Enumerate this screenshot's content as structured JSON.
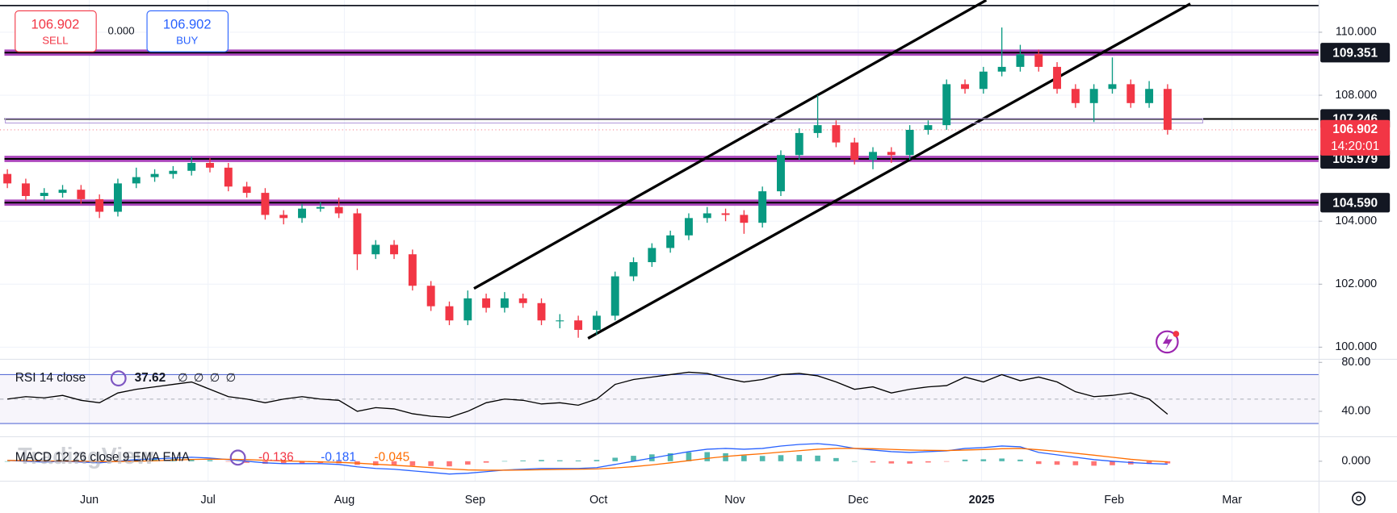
{
  "chart_data": [
    {
      "type": "candlestick",
      "up_color": "#089981",
      "down_color": "#f23645",
      "xlim": [
        -0.4,
        71.2
      ],
      "xticks": [
        {
          "value": 4.45,
          "label": "Jun"
        },
        {
          "value": 10.9,
          "label": "Jul"
        },
        {
          "value": 18.3,
          "label": "Aug"
        },
        {
          "value": 25.4,
          "label": "Sep"
        },
        {
          "value": 32.1,
          "label": "Oct"
        },
        {
          "value": 39.5,
          "label": "Nov"
        },
        {
          "value": 46.2,
          "label": "Dec"
        },
        {
          "value": 52.9,
          "label": "2025"
        },
        {
          "value": 60.1,
          "label": "Feb"
        },
        {
          "value": 66.5,
          "label": "Mar"
        }
      ],
      "ylim": [
        99.63,
        111.017
      ],
      "yticks": [
        {
          "value": 100,
          "label": "100.000"
        },
        {
          "value": 102,
          "label": "102.000"
        },
        {
          "value": 104,
          "label": "104.000"
        },
        {
          "value": 108,
          "label": "108.000"
        },
        {
          "value": 110,
          "label": "110.000"
        }
      ],
      "grid": true,
      "levels": [
        {
          "value": 109.351,
          "highlight": true
        },
        {
          "value": 107.246,
          "highlight": false
        },
        {
          "value": 105.979,
          "highlight": true
        },
        {
          "value": 104.59,
          "label": "104.590",
          "highlight": true
        }
      ],
      "countdown": "14:20:01",
      "values": [
        [
          105.5,
          105.65,
          105.05,
          105.2
        ],
        [
          105.2,
          105.35,
          104.65,
          104.8
        ],
        [
          104.8,
          105.05,
          104.65,
          104.9
        ],
        [
          104.9,
          105.15,
          104.75,
          105.0
        ],
        [
          105.0,
          105.15,
          104.55,
          104.7
        ],
        [
          104.7,
          104.85,
          104.1,
          104.3
        ],
        [
          104.3,
          105.35,
          104.15,
          105.2
        ],
        [
          105.2,
          105.7,
          105.05,
          105.4
        ],
        [
          105.4,
          105.65,
          105.25,
          105.5
        ],
        [
          105.5,
          105.75,
          105.35,
          105.6
        ],
        [
          105.6,
          106.05,
          105.45,
          105.85
        ],
        [
          105.85,
          106.0,
          105.55,
          105.7
        ],
        [
          105.7,
          105.85,
          104.95,
          105.1
        ],
        [
          105.1,
          105.25,
          104.75,
          104.9
        ],
        [
          104.9,
          105.05,
          104.05,
          104.2
        ],
        [
          104.2,
          104.35,
          103.9,
          104.1
        ],
        [
          104.1,
          104.55,
          103.95,
          104.4
        ],
        [
          104.4,
          104.6,
          104.3,
          104.45
        ],
        [
          104.45,
          104.75,
          104.1,
          104.25
        ],
        [
          104.25,
          104.4,
          102.45,
          102.95
        ],
        [
          102.95,
          103.4,
          102.8,
          103.25
        ],
        [
          103.25,
          103.4,
          102.8,
          102.95
        ],
        [
          102.95,
          103.1,
          101.8,
          101.95
        ],
        [
          101.95,
          102.1,
          101.15,
          101.3
        ],
        [
          101.3,
          101.45,
          100.7,
          100.85
        ],
        [
          100.85,
          101.8,
          100.7,
          101.55
        ],
        [
          101.55,
          101.7,
          101.1,
          101.25
        ],
        [
          101.25,
          101.75,
          101.1,
          101.55
        ],
        [
          101.55,
          101.7,
          101.25,
          101.4
        ],
        [
          101.4,
          101.55,
          100.7,
          100.85
        ],
        [
          100.85,
          101.05,
          100.6,
          100.85
        ],
        [
          100.85,
          101.0,
          100.3,
          100.55
        ],
        [
          100.55,
          101.15,
          100.4,
          101.0
        ],
        [
          101.0,
          102.4,
          100.85,
          102.25
        ],
        [
          102.25,
          102.85,
          102.1,
          102.7
        ],
        [
          102.7,
          103.3,
          102.55,
          103.15
        ],
        [
          103.15,
          103.7,
          103.0,
          103.55
        ],
        [
          103.55,
          104.25,
          103.4,
          104.1
        ],
        [
          104.1,
          104.45,
          103.95,
          104.25
        ],
        [
          104.25,
          104.4,
          104.0,
          104.2
        ],
        [
          104.2,
          104.35,
          103.6,
          103.95
        ],
        [
          103.95,
          105.1,
          103.8,
          104.95
        ],
        [
          104.95,
          106.25,
          104.8,
          106.1
        ],
        [
          106.1,
          106.95,
          105.95,
          106.8
        ],
        [
          106.8,
          108.0,
          106.65,
          107.05
        ],
        [
          107.05,
          107.2,
          106.35,
          106.5
        ],
        [
          106.5,
          106.65,
          105.8,
          105.95
        ],
        [
          105.95,
          106.35,
          105.65,
          106.2
        ],
        [
          106.2,
          106.35,
          105.85,
          106.1
        ],
        [
          106.1,
          107.05,
          105.95,
          106.9
        ],
        [
          106.9,
          107.2,
          106.75,
          107.05
        ],
        [
          107.05,
          108.5,
          106.9,
          108.35
        ],
        [
          108.35,
          108.5,
          108.05,
          108.2
        ],
        [
          108.2,
          108.9,
          108.05,
          108.75
        ],
        [
          108.75,
          110.15,
          108.6,
          108.9
        ],
        [
          108.9,
          109.6,
          108.75,
          109.3
        ],
        [
          109.3,
          109.45,
          108.75,
          108.9
        ],
        [
          108.9,
          109.05,
          108.05,
          108.2
        ],
        [
          108.2,
          108.35,
          107.6,
          107.75
        ],
        [
          107.75,
          108.35,
          107.15,
          108.2
        ],
        [
          108.2,
          109.2,
          108.05,
          108.35
        ],
        [
          108.35,
          108.5,
          107.6,
          107.75
        ],
        [
          107.75,
          108.45,
          107.6,
          108.2
        ],
        [
          108.2,
          108.35,
          106.75,
          106.902
        ]
      ]
    },
    {
      "type": "line",
      "title": "RSI 14 close",
      "placeholders": [
        "∅",
        "∅",
        "∅",
        "∅"
      ],
      "series": [
        {
          "color": "#000000",
          "values": [
            50,
            52,
            51,
            53,
            49,
            47,
            55,
            58,
            60,
            62,
            64,
            58,
            52,
            50,
            47,
            50,
            52,
            50,
            49,
            40,
            43,
            42,
            38,
            36,
            35,
            40,
            47,
            50,
            49,
            46,
            47,
            45,
            50,
            62,
            66,
            68,
            70,
            72,
            71,
            67,
            64,
            66,
            70,
            71,
            69,
            64,
            58,
            60,
            55,
            58,
            60,
            61,
            68,
            64,
            70,
            65,
            68,
            64,
            56,
            52,
            53,
            55,
            50,
            37.62
          ]
        }
      ],
      "ylim": [
        19.6,
        82.9
      ],
      "yticks": [
        {
          "value": 40,
          "label": "40.00"
        },
        {
          "value": 80,
          "label": "80.00"
        }
      ],
      "bands": [
        30,
        70
      ],
      "midline": 50,
      "band_color": "#7e57c2"
    },
    {
      "type": "macd",
      "title": "MACD 12 26 close 9 EMA EMA",
      "series": [
        {
          "type": "histogram",
          "up_color": "#26a69a",
          "down_color": "#ff5252",
          "values": [
            0,
            -0.04,
            -0.07,
            -0.01,
            -0.05,
            -0.08,
            0.02,
            0.1,
            0.12,
            0.13,
            0.14,
            0.07,
            -0.02,
            -0.1,
            -0.16,
            -0.17,
            -0.14,
            -0.11,
            -0.13,
            -0.23,
            -0.26,
            -0.25,
            -0.28,
            -0.3,
            -0.32,
            -0.21,
            -0.09,
            0.01,
            0.05,
            0.08,
            0.06,
            0.05,
            0.08,
            0.22,
            0.34,
            0.43,
            0.5,
            0.56,
            0.57,
            0.5,
            0.36,
            0.33,
            0.38,
            0.39,
            0.35,
            0.2,
            0,
            -0.08,
            -0.14,
            -0.15,
            -0.08,
            -0.02,
            0.1,
            0.12,
            0.17,
            0.1,
            -0.17,
            -0.22,
            -0.25,
            -0.28,
            -0.25,
            -0.2,
            -0.17,
            -0.136
          ]
        },
        {
          "color": "#2962ff",
          "values": [
            0.05,
            0,
            -0.05,
            0,
            -0.05,
            -0.1,
            0,
            0.1,
            0.15,
            0.2,
            0.25,
            0.2,
            0.1,
            0,
            -0.1,
            -0.15,
            -0.15,
            -0.15,
            -0.2,
            -0.35,
            -0.45,
            -0.5,
            -0.6,
            -0.7,
            -0.8,
            -0.75,
            -0.65,
            -0.55,
            -0.5,
            -0.45,
            -0.45,
            -0.45,
            -0.4,
            -0.2,
            0,
            0.2,
            0.4,
            0.6,
            0.75,
            0.8,
            0.75,
            0.8,
            0.95,
            1.05,
            1.1,
            1.0,
            0.8,
            0.7,
            0.6,
            0.55,
            0.6,
            0.65,
            0.8,
            0.85,
            0.95,
            0.9,
            0.55,
            0.4,
            0.25,
            0.1,
            0,
            -0.08,
            -0.14,
            -0.181
          ]
        },
        {
          "color": "#ff6d00",
          "values": [
            0.05,
            0.04,
            0.02,
            0.01,
            0,
            -0.02,
            -0.02,
            0,
            0.03,
            0.07,
            0.11,
            0.13,
            0.12,
            0.1,
            0.06,
            0.02,
            -0.01,
            -0.04,
            -0.07,
            -0.12,
            -0.19,
            -0.25,
            -0.32,
            -0.4,
            -0.48,
            -0.54,
            -0.56,
            -0.56,
            -0.55,
            -0.53,
            -0.51,
            -0.5,
            -0.48,
            -0.42,
            -0.34,
            -0.23,
            -0.1,
            0.04,
            0.18,
            0.3,
            0.39,
            0.47,
            0.57,
            0.66,
            0.75,
            0.8,
            0.8,
            0.78,
            0.74,
            0.7,
            0.68,
            0.67,
            0.7,
            0.73,
            0.78,
            0.8,
            0.72,
            0.62,
            0.5,
            0.38,
            0.25,
            0.12,
            0.03,
            -0.045
          ]
        }
      ],
      "ylim": [
        -1.22,
        1.56
      ],
      "yticks": [
        {
          "value": 0,
          "label": "0.000"
        }
      ]
    }
  ],
  "trade_panel": {
    "sell_label": "SELL",
    "buy_label": "BUY",
    "spread": {
      "value": 0,
      "label": "0.000"
    }
  },
  "watermark": "TradingView"
}
